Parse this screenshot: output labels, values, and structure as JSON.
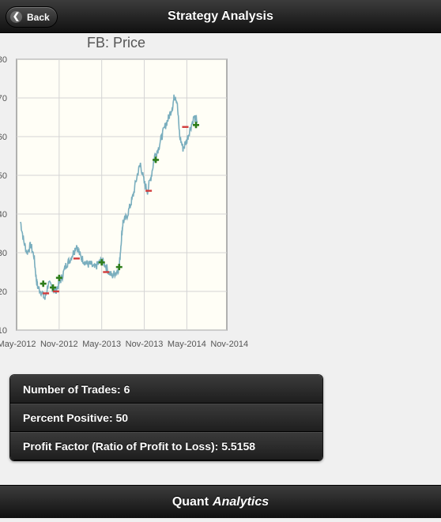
{
  "header": {
    "title": "Strategy Analysis",
    "back_label": "Back"
  },
  "chart_data": {
    "type": "line",
    "title": "FB: Price",
    "xlabel": "",
    "ylabel": "",
    "x_ticks": [
      "May-2012",
      "Nov-2012",
      "May-2013",
      "Nov-2013",
      "May-2014",
      "Nov-2014"
    ],
    "x_range": [
      "2012-05",
      "2014-11"
    ],
    "y_ticks": [
      10,
      20,
      30,
      40,
      50,
      60,
      70,
      80
    ],
    "ylim": [
      10,
      80
    ],
    "grid": true,
    "line_color": "#7aaebe",
    "series": [
      {
        "x": [
          "2012-05-18",
          "2012-06-01",
          "2012-06-15",
          "2012-07-01",
          "2012-07-15",
          "2012-07-25",
          "2012-08-01",
          "2012-08-15",
          "2012-09-01",
          "2012-09-15",
          "2012-10-01",
          "2012-10-15",
          "2012-11-01",
          "2012-11-15",
          "2012-12-01",
          "2012-12-15",
          "2013-01-01",
          "2013-01-15",
          "2013-02-01",
          "2013-02-15",
          "2013-03-01",
          "2013-03-15",
          "2013-04-01",
          "2013-04-15",
          "2013-05-01",
          "2013-05-15",
          "2013-06-01",
          "2013-06-15",
          "2013-07-01",
          "2013-07-15",
          "2013-07-25",
          "2013-08-01",
          "2013-08-15",
          "2013-09-01",
          "2013-09-15",
          "2013-10-01",
          "2013-10-15",
          "2013-11-01",
          "2013-11-15",
          "2013-12-01",
          "2013-12-15",
          "2014-01-01",
          "2014-01-15",
          "2014-02-01",
          "2014-02-15",
          "2014-03-01",
          "2014-03-10",
          "2014-03-20",
          "2014-04-01",
          "2014-04-15",
          "2014-05-01",
          "2014-05-15",
          "2014-06-01",
          "2014-06-15"
        ],
        "y": [
          38,
          33,
          30,
          32,
          29,
          23,
          21,
          20,
          18,
          22,
          21,
          20,
          22,
          24,
          27,
          28,
          30,
          32,
          29,
          28,
          27,
          27,
          26,
          27,
          28,
          27,
          25,
          24,
          25,
          26,
          34,
          38,
          39,
          42,
          45,
          50,
          53,
          48,
          46,
          50,
          55,
          57,
          60,
          63,
          65,
          68,
          71,
          69,
          60,
          57,
          59,
          62,
          65,
          64
        ]
      }
    ],
    "trades": [
      {
        "x": "2012-08-24",
        "y": 22,
        "type": "buy"
      },
      {
        "x": "2012-09-05",
        "y": 19.5,
        "type": "sell"
      },
      {
        "x": "2012-10-05",
        "y": 21,
        "type": "buy"
      },
      {
        "x": "2012-10-18",
        "y": 20,
        "type": "sell"
      },
      {
        "x": "2012-11-01",
        "y": 23.5,
        "type": "buy"
      },
      {
        "x": "2013-01-15",
        "y": 28.5,
        "type": "sell"
      },
      {
        "x": "2013-05-01",
        "y": 27.5,
        "type": "buy"
      },
      {
        "x": "2013-05-20",
        "y": 25,
        "type": "sell"
      },
      {
        "x": "2013-07-15",
        "y": 26.3,
        "type": "buy"
      },
      {
        "x": "2013-11-20",
        "y": 46,
        "type": "sell"
      },
      {
        "x": "2013-12-20",
        "y": 54,
        "type": "buy"
      },
      {
        "x": "2014-04-25",
        "y": 62.5,
        "type": "sell"
      },
      {
        "x": "2014-06-10",
        "y": 63,
        "type": "buy"
      }
    ],
    "buy_color": "#2e7d1a",
    "sell_color": "#d23b3b"
  },
  "stats": [
    {
      "label": "Number of Trades: 6"
    },
    {
      "label": "Percent Positive: 50"
    },
    {
      "label": "Profit Factor (Ratio of Profit to Loss): 5.5158"
    }
  ],
  "footer": {
    "brand_plain": "Quant",
    "brand_italic": "Analytics"
  }
}
